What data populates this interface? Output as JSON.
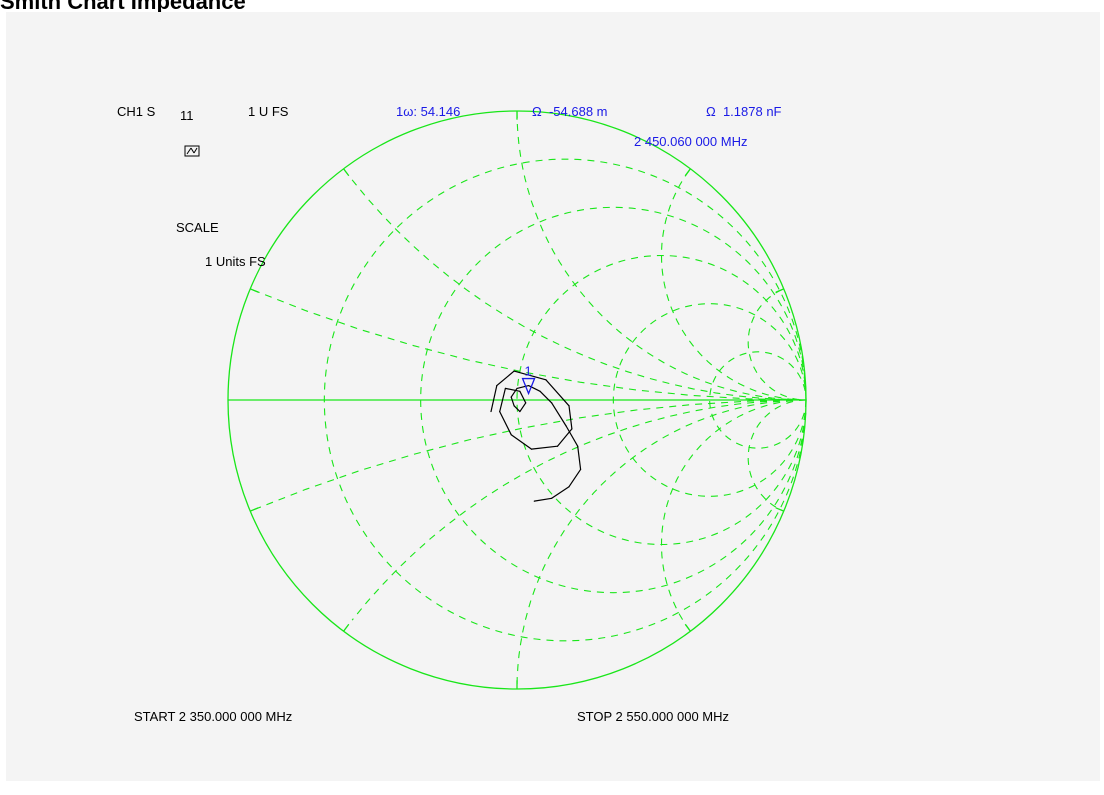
{
  "page": {
    "title": "Smith Chart Impedance"
  },
  "header": {
    "channel_prefix": "CH1 S",
    "param_sub": "11",
    "format": "1 U FS"
  },
  "marker": {
    "prefix": "1",
    "r_readout": ": 54.146",
    "x_readout": "-54.688 m",
    "c_readout": "1.1878 nF",
    "frequency": "2 450.060 000 MHz",
    "label": "1"
  },
  "scale": {
    "label": "SCALE",
    "value": "1 Units FS"
  },
  "sweep": {
    "start": "START 2 350.000 000 MHz",
    "stop": "STOP 2 550.000 000 MHz"
  },
  "colors": {
    "grid": "#19e619",
    "trace": "#000000",
    "marker": "#1a1ae6",
    "panel_bg": "#f4f4f4"
  },
  "chart_data": {
    "type": "scatter",
    "chart_kind": "smith",
    "title": "Smith Chart Impedance",
    "grid": true,
    "resistance_circles": [
      0.2,
      0.5,
      1,
      2,
      5
    ],
    "reactance_arcs": [
      0.2,
      0.5,
      1,
      2,
      5,
      -0.2,
      -0.5,
      -1,
      -2,
      -5
    ],
    "series": [
      {
        "x": [
          -0.09,
          -0.07,
          -0.01,
          0.1,
          0.18,
          0.19,
          0.14,
          0.05,
          -0.02,
          -0.06,
          -0.04,
          0.01,
          0.03,
          0.01,
          -0.01,
          -0.02,
          0.0,
          0.04,
          0.08,
          0.12,
          0.17,
          0.21,
          0.22,
          0.18,
          0.12,
          0.06
        ],
        "y": [
          -0.04,
          0.05,
          0.1,
          0.07,
          -0.02,
          -0.1,
          -0.16,
          -0.17,
          -0.12,
          -0.04,
          0.04,
          0.03,
          -0.01,
          -0.04,
          -0.02,
          0.01,
          0.04,
          0.05,
          0.03,
          -0.01,
          -0.09,
          -0.16,
          -0.24,
          -0.3,
          -0.34,
          -0.35
        ]
      }
    ],
    "markers": [
      {
        "label": "1",
        "x": 0.04,
        "y": 0.05
      }
    ]
  }
}
